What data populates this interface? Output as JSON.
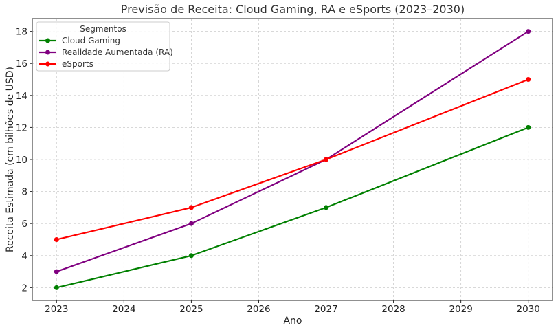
{
  "chart_data": {
    "type": "line",
    "title": "Previsão de Receita: Cloud Gaming, RA e eSports (2023–2030)",
    "xlabel": "Ano",
    "ylabel": "Receita Estimada (em bilhões de USD)",
    "x_ticks": [
      2023,
      2024,
      2025,
      2026,
      2027,
      2028,
      2029,
      2030
    ],
    "y_ticks": [
      2,
      4,
      6,
      8,
      10,
      12,
      14,
      16,
      18
    ],
    "xlim": [
      2022.64,
      2030.36
    ],
    "ylim": [
      1.2,
      18.8
    ],
    "grid": true,
    "legend": {
      "title": "Segmentos",
      "placement": "top-left"
    },
    "series": [
      {
        "name": "Cloud Gaming",
        "color": "#008000",
        "x": [
          2023,
          2025,
          2027,
          2030
        ],
        "y": [
          2,
          4,
          7,
          12
        ]
      },
      {
        "name": "Realidade Aumentada (RA)",
        "color": "#800080",
        "x": [
          2023,
          2025,
          2027,
          2030
        ],
        "y": [
          3,
          6,
          10,
          18
        ]
      },
      {
        "name": "eSports",
        "color": "#ff0000",
        "x": [
          2023,
          2025,
          2027,
          2030
        ],
        "y": [
          5,
          7,
          10,
          15
        ]
      }
    ]
  }
}
